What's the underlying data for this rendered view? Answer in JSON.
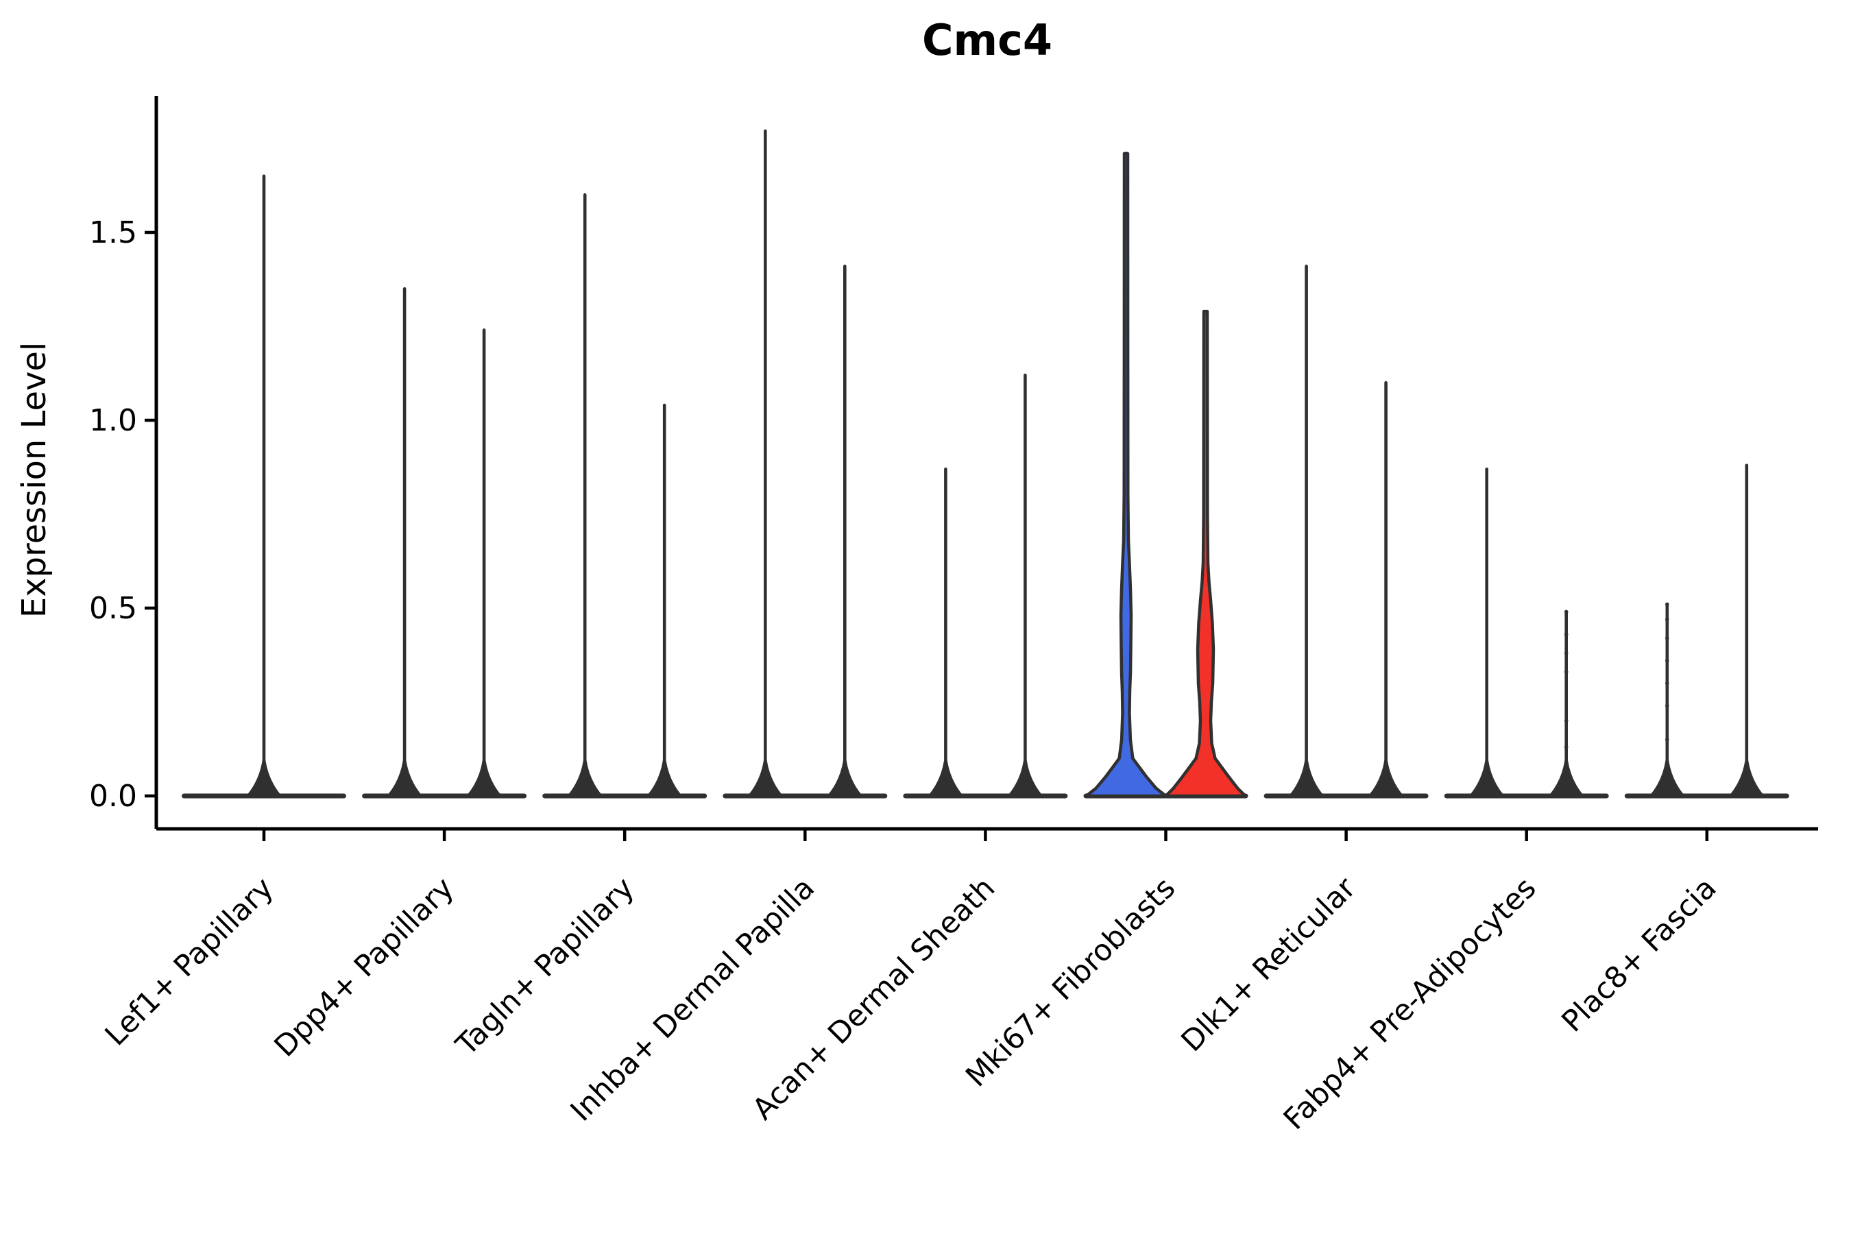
{
  "title": "Cmc4",
  "axes": {
    "ylabel": "Expression Level",
    "ytick_labels": [
      "0.0",
      "0.5",
      "1.0",
      "1.5"
    ]
  },
  "colors": {
    "outline": "#303030",
    "blue_fill": "#4169E1",
    "red_fill": "#F23128",
    "background": "#ffffff"
  },
  "chart_data": {
    "type": "violin",
    "title": "Cmc4",
    "xlabel": "",
    "ylabel": "Expression Level",
    "ylim": [
      -0.09,
      1.86
    ],
    "yticks": [
      0.0,
      0.5,
      1.0,
      1.5
    ],
    "grid": false,
    "legend": "none",
    "layout_hint": "two dodged violins (left/right) per category; almost all density collapsed at 0 giving a wide flat base with a thin spike to the max value; only Mki67+ Fibroblasts violins are color-filled (left blue, right red)",
    "categories": [
      "Lef1+ Papillary",
      "Dpp4+ Papillary",
      "Tagln+ Papillary",
      "Inhba+ Dermal Papilla",
      "Acan+ Dermal Sheath",
      "Mki67+ Fibroblasts",
      "Dlk1+ Reticular",
      "Fabp4+ Pre-Adipocytes",
      "Plac8+ Fascia"
    ],
    "violins": [
      {
        "category_index": 0,
        "category": "Lef1+ Papillary",
        "position": "center",
        "max_expression": 1.65
      },
      {
        "category_index": 1,
        "category": "Dpp4+ Papillary",
        "position": "left",
        "max_expression": 1.35
      },
      {
        "category_index": 1,
        "category": "Dpp4+ Papillary",
        "position": "right",
        "max_expression": 1.24
      },
      {
        "category_index": 2,
        "category": "Tagln+ Papillary",
        "position": "left",
        "max_expression": 1.6
      },
      {
        "category_index": 2,
        "category": "Tagln+ Papillary",
        "position": "right",
        "max_expression": 1.04
      },
      {
        "category_index": 3,
        "category": "Inhba+ Dermal Papilla",
        "position": "left",
        "max_expression": 1.77
      },
      {
        "category_index": 3,
        "category": "Inhba+ Dermal Papilla",
        "position": "right",
        "max_expression": 1.41
      },
      {
        "category_index": 4,
        "category": "Acan+ Dermal Sheath",
        "position": "left",
        "max_expression": 0.87
      },
      {
        "category_index": 4,
        "category": "Acan+ Dermal Sheath",
        "position": "right",
        "max_expression": 1.12
      },
      {
        "category_index": 5,
        "category": "Mki67+ Fibroblasts",
        "position": "left",
        "max_expression": 1.71,
        "fill": "#4169E1",
        "profile": [
          [
            0,
            1
          ],
          [
            0.02,
            0.76
          ],
          [
            0.05,
            0.52
          ],
          [
            0.08,
            0.31
          ],
          [
            0.1,
            0.17
          ],
          [
            0.15,
            0.11
          ],
          [
            0.22,
            0.086
          ],
          [
            0.28,
            0.095
          ],
          [
            0.33,
            0.112
          ],
          [
            0.4,
            0.121
          ],
          [
            0.48,
            0.129
          ],
          [
            0.55,
            0.112
          ],
          [
            0.62,
            0.086
          ],
          [
            0.68,
            0.06
          ],
          [
            0.8,
            0.048
          ],
          [
            1.2,
            0.045
          ],
          [
            1.71,
            0.043
          ]
        ]
      },
      {
        "category_index": 5,
        "category": "Mki67+ Fibroblasts",
        "position": "right",
        "max_expression": 1.29,
        "fill": "#F23128",
        "profile": [
          [
            0,
            1
          ],
          [
            0.02,
            0.81
          ],
          [
            0.05,
            0.59
          ],
          [
            0.08,
            0.38
          ],
          [
            0.1,
            0.24
          ],
          [
            0.14,
            0.155
          ],
          [
            0.2,
            0.129
          ],
          [
            0.25,
            0.147
          ],
          [
            0.3,
            0.181
          ],
          [
            0.39,
            0.198
          ],
          [
            0.46,
            0.172
          ],
          [
            0.52,
            0.129
          ],
          [
            0.57,
            0.086
          ],
          [
            0.62,
            0.06
          ],
          [
            0.75,
            0.048
          ],
          [
            1.29,
            0.043
          ]
        ]
      },
      {
        "category_index": 6,
        "category": "Dlk1+ Reticular",
        "position": "left",
        "max_expression": 1.41
      },
      {
        "category_index": 6,
        "category": "Dlk1+ Reticular",
        "position": "right",
        "max_expression": 1.1
      },
      {
        "category_index": 7,
        "category": "Fabp4+ Pre-Adipocytes",
        "position": "left",
        "max_expression": 0.87
      },
      {
        "category_index": 7,
        "category": "Fabp4+ Pre-Adipocytes",
        "position": "right",
        "max_expression": 0.49,
        "points": [
          0.49,
          0.43,
          0.38,
          0.33,
          0.2,
          0.13
        ]
      },
      {
        "category_index": 8,
        "category": "Plac8+ Fascia",
        "position": "left",
        "max_expression": 0.51,
        "points": [
          0.51,
          0.47,
          0.42,
          0.36,
          0.3,
          0.24,
          0.15
        ]
      },
      {
        "category_index": 8,
        "category": "Plac8+ Fascia",
        "position": "right",
        "max_expression": 0.88
      }
    ]
  }
}
